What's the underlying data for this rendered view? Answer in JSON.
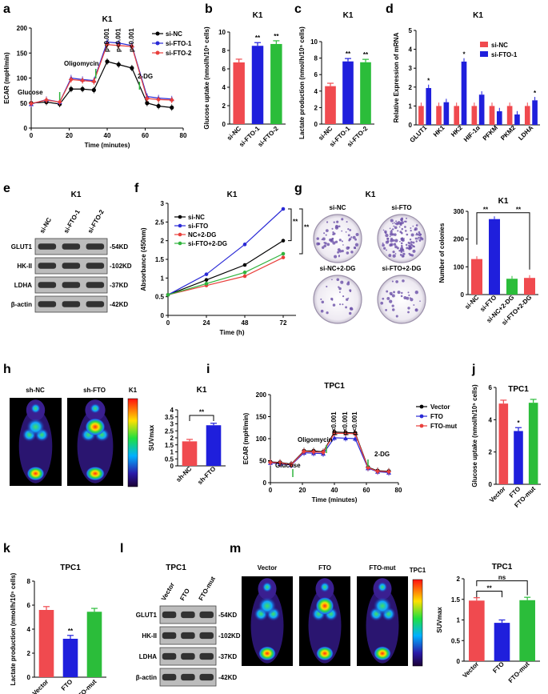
{
  "colors": {
    "nc": "#f04a4f",
    "fto1": "#1f1fdc",
    "fto2": "#2bbd3a",
    "black": "#000000",
    "blue": "#2a2ad6",
    "red": "#e9403c",
    "green": "#2fb43d"
  },
  "panels": {
    "a": {
      "letter": "a",
      "title": "K1"
    },
    "b": {
      "letter": "b",
      "title": "K1"
    },
    "c": {
      "letter": "c",
      "title": "K1"
    },
    "d": {
      "letter": "d",
      "title": "K1"
    },
    "e": {
      "letter": "e",
      "title": "K1",
      "lanes": [
        "si-NC",
        "si-FTO-1",
        "si-FTO-2"
      ],
      "proteins": [
        "GLUT1",
        "HK-II",
        "LDHA",
        "β-actin"
      ],
      "sizes": [
        "-54KD",
        "-102KD",
        "-37KD",
        "-42KD"
      ]
    },
    "f": {
      "letter": "f",
      "title": "K1"
    },
    "g": {
      "letter": "g",
      "title": "K1",
      "dish_labels": [
        "si-NC",
        "si-FTO",
        "si-NC+2-DG",
        "si-FTO+2-DG"
      ]
    },
    "h": {
      "letter": "h",
      "title": "K1",
      "pet_labels": [
        "sh-NC",
        "sh-FTO"
      ],
      "colorbar_label": "K1"
    },
    "i": {
      "letter": "i",
      "title": "TPC1"
    },
    "j": {
      "letter": "j",
      "title": "TPC1"
    },
    "k": {
      "letter": "k",
      "title": "TPC1"
    },
    "l": {
      "letter": "l",
      "title": "TPC1",
      "lanes": [
        "Vector",
        "FTO",
        "FTO-mut"
      ],
      "proteins": [
        "GLUT1",
        "HK-II",
        "LDHA",
        "β-actin"
      ],
      "sizes": [
        "-54KD",
        "-102KD",
        "-37KD",
        "-42KD"
      ]
    },
    "m": {
      "letter": "m",
      "title": "TPC1",
      "pet_labels": [
        "Vector",
        "FTO",
        "FTO-mut"
      ],
      "colorbar_label": "TPC1"
    }
  },
  "chart_data": [
    {
      "id": "a",
      "type": "line",
      "title": "K1",
      "xlabel": "Time (minutes)",
      "ylabel": "ECAR (mpH/min)",
      "xlim": [
        0,
        80
      ],
      "ylim": [
        0,
        200
      ],
      "xticks": [
        0,
        20,
        40,
        60,
        80
      ],
      "yticks": [
        0,
        50,
        100,
        150,
        200
      ],
      "x": [
        0,
        8,
        15,
        21,
        27,
        33,
        40,
        46,
        53,
        61,
        67,
        74
      ],
      "series": [
        {
          "name": "si-NC",
          "color": "#000000",
          "marker": "circle",
          "values": [
            50,
            52,
            48,
            78,
            78,
            76,
            133,
            127,
            120,
            50,
            44,
            41
          ]
        },
        {
          "name": "si-FTO-1",
          "color": "#2a2ad6",
          "marker": "triangle",
          "values": [
            48,
            57,
            52,
            100,
            97,
            95,
            172,
            170,
            165,
            63,
            60,
            58
          ]
        },
        {
          "name": "si-FTO-2",
          "color": "#e9403c",
          "marker": "diamond",
          "values": [
            49,
            56,
            52,
            97,
            95,
            93,
            167,
            165,
            163,
            59,
            57,
            56
          ]
        }
      ],
      "annotations": [
        "Glucose",
        "Oligomycin",
        "2-DG",
        "p<0.001",
        "p<0.001",
        "p<0.001"
      ]
    },
    {
      "id": "b",
      "type": "bar",
      "title": "K1",
      "ylabel": "Glucose uptake (nmol/h/10⁵ cells)",
      "ylim": [
        0,
        10
      ],
      "yticks": [
        0,
        2,
        4,
        6,
        8,
        10
      ],
      "categories": [
        "si-NC",
        "si-FTO-1",
        "si-FTO-2"
      ],
      "values": [
        6.7,
        8.5,
        8.7
      ],
      "colors": [
        "#f04a4f",
        "#1f1fdc",
        "#2bbd3a"
      ],
      "sig": [
        "",
        "**",
        "**"
      ]
    },
    {
      "id": "c",
      "type": "bar",
      "title": "K1",
      "ylabel": "Lactate production (nmol/h/10⁵ cells)",
      "ylim": [
        0,
        10
      ],
      "yticks": [
        0,
        2,
        4,
        6,
        8,
        10
      ],
      "categories": [
        "si-NC",
        "si-FTO-1",
        "si-FTO-2"
      ],
      "values": [
        4.6,
        7.6,
        7.5
      ],
      "colors": [
        "#f04a4f",
        "#1f1fdc",
        "#2bbd3a"
      ],
      "sig": [
        "",
        "**",
        "**"
      ]
    },
    {
      "id": "d",
      "type": "bar",
      "title": "K1",
      "ylabel": "Relative Expression of mRNA",
      "ylim": [
        0,
        5
      ],
      "yticks": [
        0,
        1,
        2,
        3,
        4,
        5
      ],
      "categories": [
        "GLUT1",
        "HK1",
        "HK2",
        "HIF-1α",
        "PFKM",
        "PKM2",
        "LDHA"
      ],
      "series": [
        {
          "name": "si-NC",
          "color": "#f04a4f",
          "values": [
            1.0,
            1.0,
            1.0,
            1.0,
            1.0,
            1.0,
            1.0
          ]
        },
        {
          "name": "si-FTO-1",
          "color": "#1f1fdc",
          "values": [
            1.95,
            1.2,
            3.35,
            1.6,
            0.72,
            0.55,
            1.3
          ]
        }
      ],
      "sig": [
        "*",
        "",
        "*",
        "",
        "",
        "",
        "*"
      ]
    },
    {
      "id": "f",
      "type": "line",
      "title": "K1",
      "xlabel": "Time (h)",
      "ylabel": "Absorbance (450nm)",
      "xlim": [
        0,
        80
      ],
      "ylim": [
        0,
        3
      ],
      "xticks": [
        0,
        24,
        48,
        72
      ],
      "yticks": [
        0.0,
        0.5,
        1.0,
        1.5,
        2.0,
        2.5,
        3.0
      ],
      "x": [
        0,
        24,
        48,
        72
      ],
      "series": [
        {
          "name": "si-NC",
          "color": "#000000",
          "values": [
            0.55,
            0.95,
            1.35,
            2.0
          ]
        },
        {
          "name": "si-FTO",
          "color": "#2a2ad6",
          "values": [
            0.55,
            1.1,
            1.9,
            2.85
          ]
        },
        {
          "name": "NC+2-DG",
          "color": "#e9403c",
          "values": [
            0.55,
            0.8,
            1.05,
            1.55
          ]
        },
        {
          "name": "si-FTO+2-DG",
          "color": "#2fb43d",
          "values": [
            0.55,
            0.85,
            1.15,
            1.65
          ]
        }
      ],
      "sig": [
        "**",
        "**"
      ]
    },
    {
      "id": "g",
      "type": "bar",
      "title": "K1",
      "ylabel": "Number of colonies",
      "ylim": [
        0,
        300
      ],
      "yticks": [
        0,
        100,
        200,
        300
      ],
      "categories": [
        "si-NC",
        "si-FTO",
        "si-NC+2-DG",
        "si-FTO+2-DG"
      ],
      "values": [
        128,
        272,
        57,
        60
      ],
      "colors": [
        "#f04a4f",
        "#1f1fdc",
        "#2bbd3a",
        "#f04a4f"
      ],
      "sig": [
        "**",
        "**"
      ]
    },
    {
      "id": "h",
      "type": "bar",
      "title": "K1",
      "ylabel": "SUVmax",
      "ylim": [
        0,
        4
      ],
      "yticks": [
        0.0,
        0.5,
        1.0,
        1.5,
        2.0,
        2.5,
        3.0,
        3.5,
        4.0
      ],
      "categories": [
        "sh-NC",
        "sh-FTO"
      ],
      "values": [
        1.75,
        2.9
      ],
      "colors": [
        "#f04a4f",
        "#1f1fdc"
      ],
      "sig": [
        "**"
      ]
    },
    {
      "id": "i",
      "type": "line",
      "title": "TPC1",
      "xlabel": "Time (minutes)",
      "ylabel": "ECAR (mpH/min)",
      "xlim": [
        0,
        80
      ],
      "ylim": [
        0,
        200
      ],
      "xticks": [
        0,
        20,
        40,
        60,
        80
      ],
      "yticks": [
        0,
        50,
        100,
        150,
        200
      ],
      "x": [
        0,
        6,
        13,
        21,
        27,
        33,
        40,
        47,
        53,
        61,
        67,
        74
      ],
      "series": [
        {
          "name": "Vector",
          "color": "#000000",
          "marker": "circle",
          "values": [
            47,
            46,
            42,
            72,
            72,
            70,
            115,
            114,
            113,
            35,
            27,
            26
          ]
        },
        {
          "name": "FTO",
          "color": "#2a2ad6",
          "marker": "triangle",
          "values": [
            45,
            43,
            40,
            68,
            67,
            66,
            102,
            101,
            100,
            33,
            25,
            23
          ]
        },
        {
          "name": "FTO-mut",
          "color": "#e9403c",
          "marker": "diamond",
          "values": [
            46,
            45,
            41,
            71,
            70,
            69,
            112,
            112,
            111,
            34,
            26,
            25
          ]
        }
      ],
      "annotations": [
        "Glucose",
        "Oligomycin",
        "2-DG",
        "p<0.001",
        "p<0.001",
        "p<0.001"
      ]
    },
    {
      "id": "j",
      "type": "bar",
      "title": "TPC1",
      "ylabel": "Glucose uptake (nmol/h/10⁵ cells)",
      "ylim": [
        0,
        6
      ],
      "yticks": [
        0,
        2,
        4,
        6
      ],
      "categories": [
        "Vector",
        "FTO",
        "FTO-mut"
      ],
      "values": [
        5.0,
        3.3,
        5.05
      ],
      "colors": [
        "#f04a4f",
        "#1f1fdc",
        "#2bbd3a"
      ],
      "sig": [
        "",
        "*",
        ""
      ]
    },
    {
      "id": "k",
      "type": "bar",
      "title": "TPC1",
      "ylabel": "Lactate production (nmol/h/10⁵ cells)",
      "ylim": [
        0,
        8
      ],
      "yticks": [
        0,
        2,
        4,
        6,
        8
      ],
      "categories": [
        "Vector",
        "FTO",
        "FTO-mut"
      ],
      "values": [
        5.6,
        3.2,
        5.45
      ],
      "colors": [
        "#f04a4f",
        "#1f1fdc",
        "#2bbd3a"
      ],
      "sig": [
        "",
        "**",
        ""
      ]
    },
    {
      "id": "m",
      "type": "bar",
      "title": "TPC1",
      "ylabel": "SUVmax",
      "ylim": [
        0,
        2
      ],
      "yticks": [
        0.0,
        0.5,
        1.0,
        1.5,
        2.0
      ],
      "categories": [
        "Vector",
        "FTO",
        "FTO-mut"
      ],
      "values": [
        1.47,
        0.93,
        1.48
      ],
      "colors": [
        "#f04a4f",
        "#1f1fdc",
        "#2bbd3a"
      ],
      "sig": [
        "**",
        "ns"
      ]
    }
  ]
}
